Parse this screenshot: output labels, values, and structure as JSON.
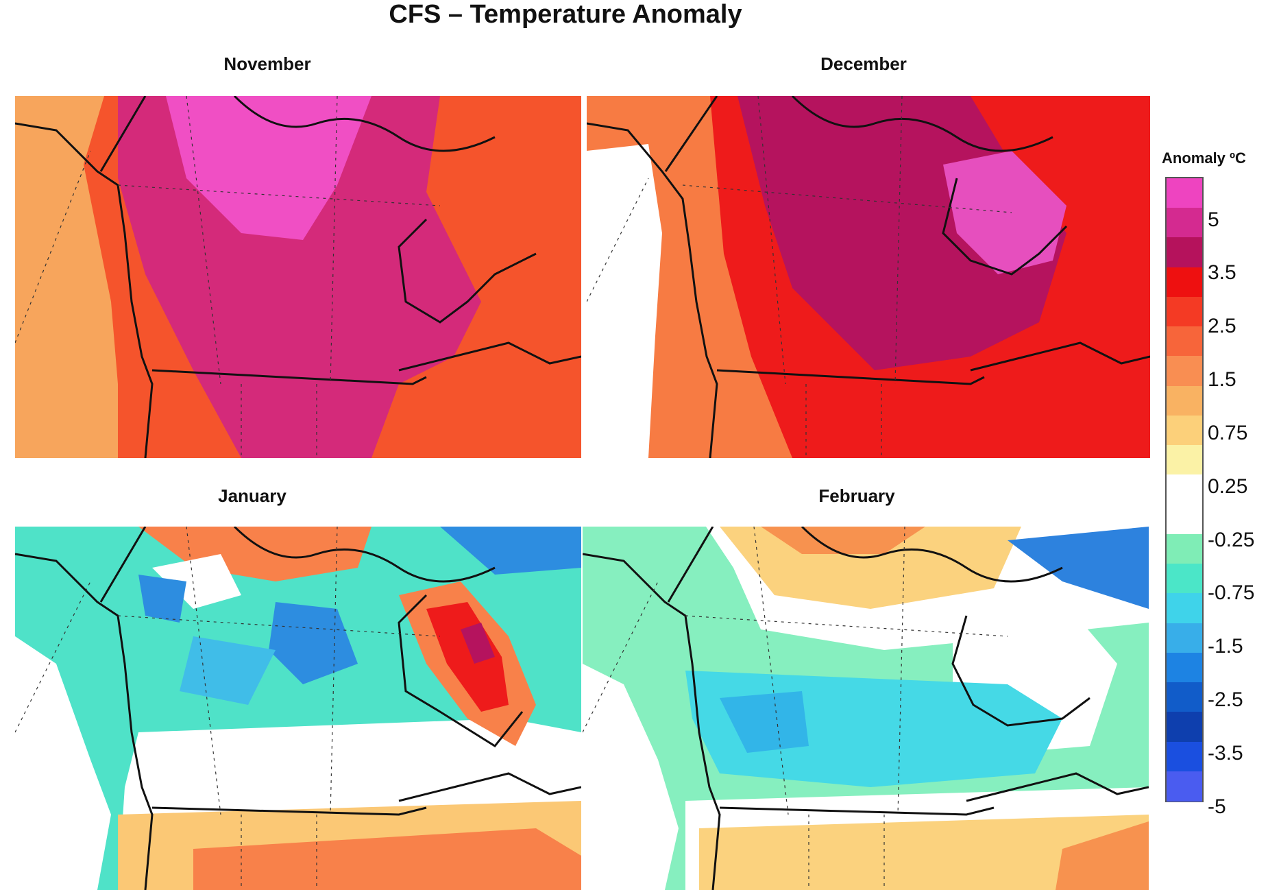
{
  "title": "CFS – Temperature Anomaly",
  "legend": {
    "title": "Anomaly ºC",
    "labels": [
      "5",
      "3.5",
      "2.5",
      "1.5",
      "0.75",
      "0.25",
      "-0.25",
      "-0.75",
      "-1.5",
      "-2.5",
      "-3.5",
      "-5"
    ],
    "colors_top_to_bottom": [
      "#ee44c0",
      "#d42a90",
      "#b5125c",
      "#ee1010",
      "#f43a24",
      "#f7653a",
      "#f98e52",
      "#f9b262",
      "#fcd07a",
      "#fbf2a6",
      "#ffffff",
      "#ffffff",
      "#7fedb6",
      "#4be6c8",
      "#3fd3ea",
      "#38aee9",
      "#1d83e3",
      "#115cc9",
      "#0e3fae",
      "#1a4fe0",
      "#4a5cf0"
    ]
  },
  "panels": [
    {
      "month": "November",
      "colors": [
        "#f7a55c",
        "#f5542c",
        "#d42a7a",
        "#f04fc4"
      ]
    },
    {
      "month": "December",
      "colors": [
        "#ffffff",
        "#f77b43",
        "#ee1b1b",
        "#b5135e",
        "#e64fbe"
      ]
    },
    {
      "month": "January",
      "colors": [
        "#4fe2c8",
        "#40bde8",
        "#2d8de0",
        "#ffffff",
        "#fbc875",
        "#f8814a",
        "#ee1b1b",
        "#b5135e"
      ]
    },
    {
      "month": "February",
      "colors": [
        "#86efbf",
        "#45d9e6",
        "#32b5e8",
        "#ffffff",
        "#fbd27e",
        "#f7924f",
        "#2d82de"
      ]
    }
  ]
}
